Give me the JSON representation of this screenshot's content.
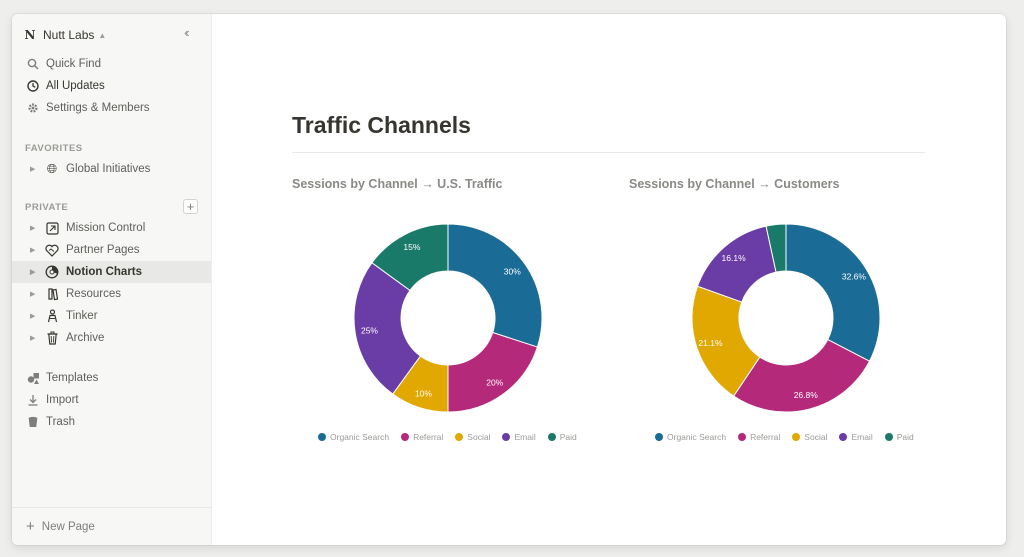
{
  "workspace": {
    "logo": "N",
    "name": "Nutt Labs"
  },
  "sidebar": {
    "top_items": [
      {
        "label": "Quick Find",
        "icon": "search-icon"
      },
      {
        "label": "All Updates",
        "icon": "clock-icon"
      },
      {
        "label": "Settings & Members",
        "icon": "gear-icon"
      }
    ],
    "favorites_label": "FAVORITES",
    "favorites": [
      {
        "label": "Global Initiatives",
        "icon": "globe-icon"
      }
    ],
    "private_label": "PRIVATE",
    "private": [
      {
        "label": "Mission Control",
        "icon": "square-arrow-icon"
      },
      {
        "label": "Partner Pages",
        "icon": "handshake-heart-icon"
      },
      {
        "label": "Notion Charts",
        "icon": "pie-chart-icon",
        "active": true
      },
      {
        "label": "Resources",
        "icon": "bundle-icon"
      },
      {
        "label": "Tinker",
        "icon": "tinker-figure-icon"
      },
      {
        "label": "Archive",
        "icon": "trash-can-icon"
      }
    ],
    "bottom_items": [
      {
        "label": "Templates",
        "icon": "templates-icon"
      },
      {
        "label": "Import",
        "icon": "download-icon"
      },
      {
        "label": "Trash",
        "icon": "trash-icon"
      }
    ],
    "new_page": "New Page"
  },
  "page": {
    "title": "Traffic Channels"
  },
  "colors": {
    "organic_search": "#1a6b96",
    "referral": "#b5297b",
    "social": "#e0a800",
    "email": "#6a3ca5",
    "paid": "#1a7a6a"
  },
  "chart_data": [
    {
      "type": "pie",
      "title": "Sessions by Channel → U.S. Traffic",
      "categories": [
        "Organic Search",
        "Referral",
        "Social",
        "Email",
        "Paid"
      ],
      "values": [
        30,
        20,
        10,
        25,
        15
      ],
      "labels": [
        "30%",
        "20%",
        "10%",
        "25%",
        "15%"
      ],
      "legend": "bottom"
    },
    {
      "type": "pie",
      "title": "Sessions by Channel → Customers",
      "categories": [
        "Organic Search",
        "Referral",
        "Social",
        "Email",
        "Paid"
      ],
      "values": [
        32.6,
        26.8,
        21.1,
        16.1,
        3.4
      ],
      "labels": [
        "32.6%",
        "26.8%",
        "21.1%",
        "16.1%",
        ""
      ],
      "legend": "bottom"
    }
  ]
}
